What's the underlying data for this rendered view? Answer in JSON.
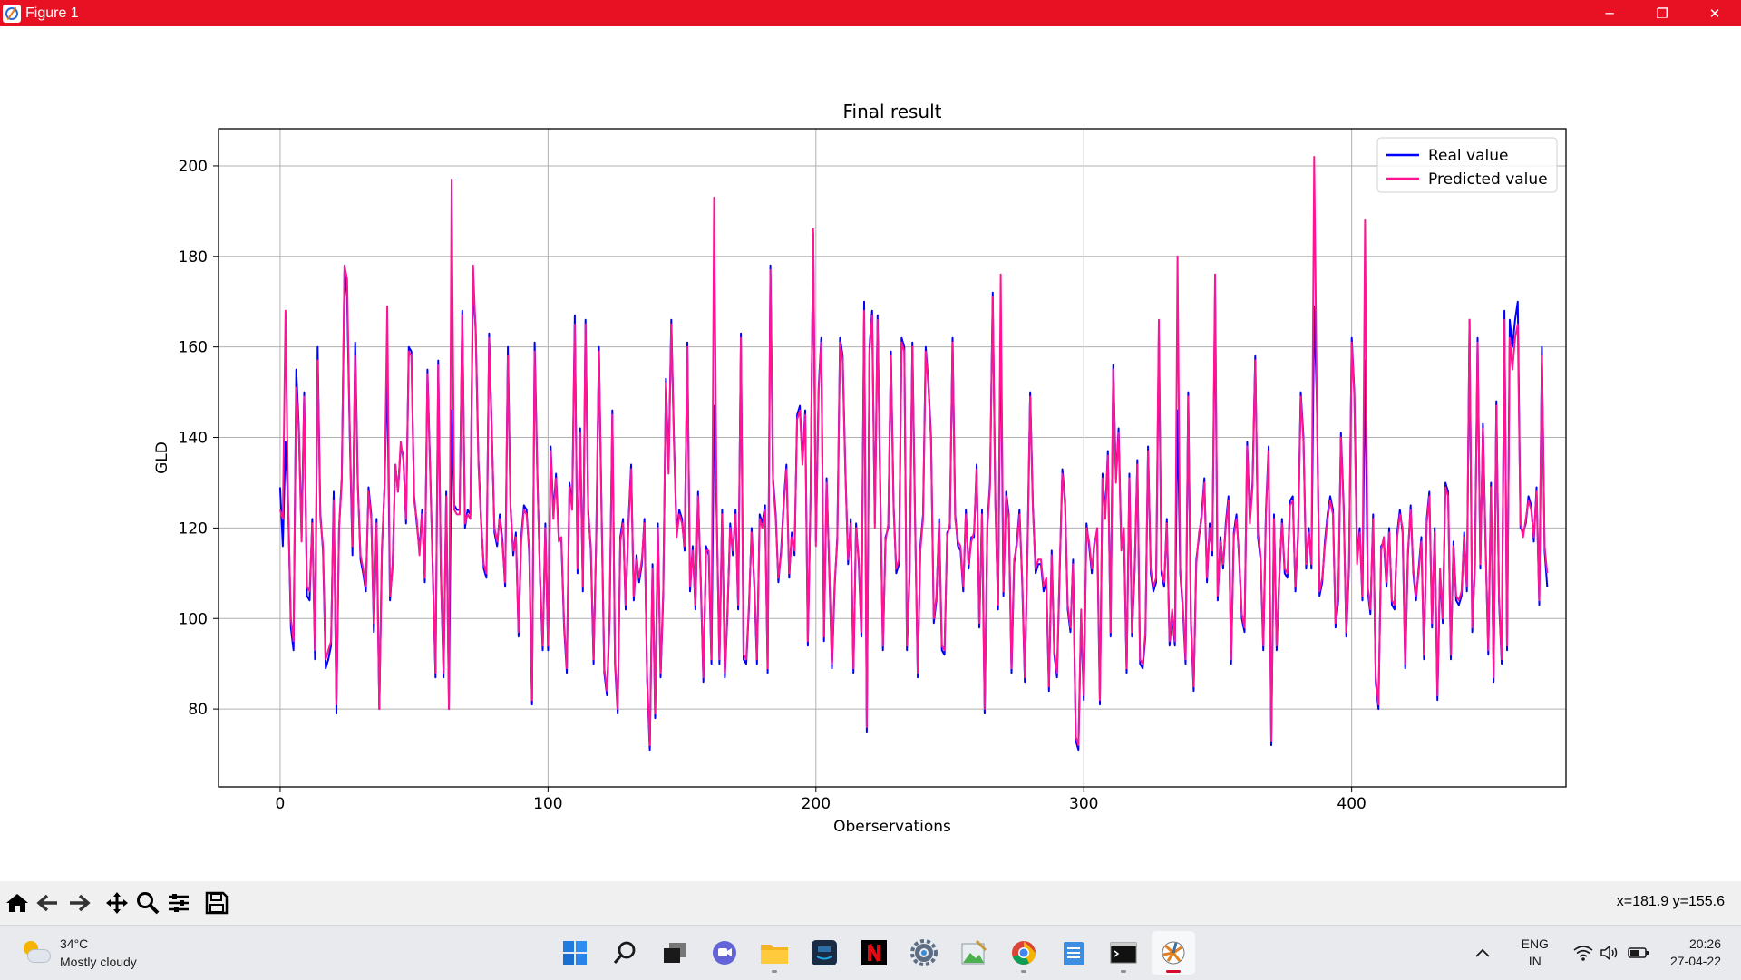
{
  "window": {
    "title": "Figure 1",
    "minimize_label": "─",
    "restore_label": "❐",
    "close_label": "✕",
    "titlebar_color": "#e81123"
  },
  "chart_data": {
    "type": "line",
    "title": "Final result",
    "xlabel": "Oberservations",
    "ylabel": "GLD",
    "xlim": [
      -23,
      480
    ],
    "ylim": [
      62.8,
      208.2
    ],
    "xticks": [
      0,
      100,
      200,
      300,
      400
    ],
    "yticks": [
      80,
      100,
      120,
      140,
      160,
      180,
      200
    ],
    "grid": true,
    "legend_position": "top-right",
    "series": [
      {
        "name": "Real value",
        "color": "#0000ff",
        "values": [
          129,
          116,
          139,
          125,
          98,
          93,
          155,
          142,
          118,
          150,
          105,
          104,
          122,
          91,
          160,
          123,
          115,
          89,
          91,
          94,
          128,
          79,
          120,
          131,
          177,
          171,
          140,
          114,
          161,
          130,
          113,
          110,
          106,
          129,
          123,
          97,
          122,
          80,
          115,
          130,
          155,
          104,
          112,
          134,
          128,
          138,
          136,
          121,
          160,
          159,
          127,
          121,
          115,
          124,
          108,
          155,
          133,
          110,
          87,
          157,
          110,
          87,
          128,
          80,
          146,
          125,
          124,
          124,
          168,
          120,
          124,
          123,
          174,
          164,
          135,
          122,
          111,
          109,
          163,
          142,
          119,
          116,
          123,
          117,
          107,
          160,
          125,
          114,
          119,
          96,
          118,
          125,
          124,
          114,
          81,
          161,
          132,
          109,
          93,
          121,
          93,
          138,
          123,
          132,
          118,
          117,
          98,
          88,
          130,
          125,
          167,
          110,
          142,
          106,
          166,
          124,
          115,
          90,
          119,
          160,
          123,
          88,
          83,
          100,
          146,
          90,
          79,
          118,
          122,
          102,
          121,
          134,
          104,
          114,
          108,
          112,
          122,
          86,
          71,
          112,
          78,
          121,
          87,
          105,
          153,
          133,
          166,
          140,
          119,
          124,
          122,
          115,
          161,
          106,
          116,
          102,
          128,
          108,
          86,
          116,
          114,
          90,
          147,
          122,
          90,
          124,
          87,
          101,
          121,
          114,
          124,
          102,
          163,
          91,
          90,
          102,
          120,
          107,
          90,
          123,
          121,
          125,
          88,
          178,
          131,
          123,
          108,
          115,
          126,
          134,
          109,
          119,
          114,
          145,
          147,
          135,
          146,
          94,
          127,
          185,
          117,
          151,
          162,
          95,
          131,
          110,
          89,
          107,
          118,
          162,
          158,
          133,
          112,
          122,
          88,
          121,
          112,
          96,
          170,
          75,
          160,
          168,
          121,
          167,
          130,
          93,
          118,
          120,
          159,
          125,
          110,
          112,
          162,
          160,
          93,
          110,
          161,
          123,
          87,
          116,
          123,
          160,
          152,
          140,
          99,
          104,
          122,
          93,
          92,
          119,
          120,
          162,
          123,
          116,
          115,
          106,
          124,
          111,
          118,
          118,
          134,
          98,
          124,
          79,
          121,
          130,
          172,
          126,
          102,
          167,
          105,
          128,
          123,
          88,
          112,
          117,
          124,
          108,
          86,
          116,
          150,
          125,
          110,
          112,
          112,
          106,
          108,
          84,
          115,
          92,
          87,
          110,
          133,
          126,
          102,
          97,
          113,
          73,
          71,
          101,
          82,
          121,
          116,
          110,
          117,
          119,
          81,
          132,
          123,
          137,
          96,
          156,
          131,
          142,
          116,
          119,
          88,
          132,
          96,
          111,
          135,
          90,
          89,
          96,
          138,
          110,
          106,
          108,
          163,
          110,
          107,
          122,
          94,
          101,
          94,
          146,
          110,
          102,
          90,
          150,
          99,
          84,
          113,
          118,
          123,
          131,
          108,
          121,
          114,
          172,
          104,
          118,
          111,
          121,
          127,
          90,
          119,
          123,
          113,
          100,
          97,
          139,
          122,
          130,
          158,
          118,
          113,
          93,
          124,
          138,
          72,
          123,
          93,
          109,
          122,
          110,
          109,
          126,
          127,
          106,
          119,
          150,
          140,
          111,
          120,
          111,
          169,
          148,
          105,
          108,
          117,
          123,
          127,
          124,
          98,
          104,
          141,
          125,
          96,
          111,
          162,
          150,
          113,
          120,
          104,
          157,
          106,
          101,
          123,
          86,
          80,
          116,
          117,
          107,
          120,
          103,
          102,
          119,
          124,
          119,
          89,
          114,
          125,
          110,
          104,
          111,
          118,
          91,
          122,
          128,
          98,
          120,
          82,
          110,
          99,
          130,
          128,
          91,
          117,
          104,
          103,
          105,
          119,
          106,
          166,
          97,
          112,
          162,
          111,
          143,
          116,
          92,
          130,
          86,
          148,
          104,
          90,
          168,
          93,
          166,
          160,
          166,
          170,
          120,
          119,
          121,
          127,
          125,
          117,
          129,
          103,
          160,
          115,
          107
        ],
        "width": 2
      },
      {
        "name": "Predicted value",
        "color": "#ff1493",
        "values": [
          124,
          122,
          168,
          125,
          100,
          95,
          151,
          141,
          117,
          149,
          107,
          106,
          121,
          93,
          157,
          122,
          116,
          91,
          93,
          95,
          126,
          81,
          120,
          130,
          178,
          175,
          141,
          116,
          158,
          129,
          114,
          111,
          107,
          128,
          122,
          99,
          121,
          80,
          116,
          129,
          169,
          105,
          111,
          134,
          128,
          139,
          135,
          122,
          159,
          158,
          126,
          122,
          114,
          123,
          109,
          154,
          132,
          111,
          88,
          156,
          111,
          88,
          127,
          80,
          197,
          124,
          123,
          123,
          167,
          121,
          123,
          122,
          178,
          163,
          134,
          121,
          112,
          110,
          162,
          141,
          120,
          117,
          122,
          116,
          108,
          158,
          124,
          115,
          118,
          97,
          117,
          124,
          123,
          115,
          82,
          159,
          131,
          110,
          94,
          120,
          94,
          137,
          122,
          131,
          117,
          118,
          99,
          89,
          129,
          124,
          165,
          111,
          141,
          107,
          165,
          123,
          116,
          91,
          118,
          159,
          122,
          89,
          84,
          101,
          145,
          91,
          80,
          117,
          121,
          103,
          120,
          133,
          105,
          113,
          109,
          113,
          121,
          87,
          72,
          111,
          79,
          120,
          88,
          106,
          152,
          132,
          165,
          139,
          118,
          123,
          121,
          116,
          160,
          107,
          115,
          103,
          127,
          109,
          87,
          115,
          115,
          91,
          193,
          121,
          91,
          123,
          88,
          102,
          120,
          115,
          123,
          103,
          162,
          92,
          91,
          103,
          119,
          108,
          91,
          122,
          120,
          124,
          89,
          177,
          130,
          122,
          109,
          114,
          125,
          133,
          110,
          118,
          115,
          144,
          146,
          134,
          145,
          95,
          126,
          186,
          116,
          150,
          161,
          96,
          130,
          111,
          90,
          108,
          117,
          161,
          157,
          132,
          113,
          121,
          89,
          120,
          113,
          97,
          168,
          76,
          159,
          167,
          120,
          166,
          129,
          94,
          117,
          121,
          158,
          124,
          111,
          113,
          161,
          159,
          94,
          111,
          160,
          122,
          88,
          115,
          122,
          159,
          151,
          139,
          100,
          105,
          121,
          94,
          93,
          118,
          121,
          161,
          122,
          117,
          116,
          107,
          123,
          112,
          117,
          119,
          133,
          99,
          123,
          80,
          120,
          129,
          171,
          125,
          103,
          176,
          106,
          127,
          122,
          89,
          113,
          116,
          123,
          109,
          87,
          115,
          149,
          124,
          111,
          113,
          113,
          107,
          109,
          85,
          114,
          93,
          88,
          111,
          132,
          125,
          103,
          98,
          112,
          74,
          72,
          102,
          83,
          120,
          117,
          111,
          116,
          120,
          82,
          131,
          122,
          136,
          97,
          155,
          130,
          141,
          115,
          120,
          89,
          131,
          97,
          112,
          134,
          91,
          90,
          97,
          137,
          111,
          107,
          109,
          166,
          111,
          108,
          121,
          95,
          102,
          95,
          180,
          111,
          103,
          91,
          149,
          100,
          85,
          112,
          119,
          122,
          130,
          109,
          120,
          115,
          176,
          105,
          117,
          112,
          120,
          126,
          91,
          118,
          122,
          114,
          101,
          98,
          138,
          121,
          129,
          157,
          119,
          114,
          94,
          123,
          137,
          73,
          122,
          94,
          110,
          121,
          111,
          110,
          125,
          126,
          107,
          118,
          149,
          139,
          112,
          119,
          112,
          202,
          147,
          106,
          109,
          116,
          122,
          126,
          123,
          99,
          105,
          140,
          124,
          97,
          112,
          161,
          149,
          112,
          119,
          105,
          188,
          107,
          102,
          122,
          87,
          81,
          115,
          118,
          108,
          119,
          104,
          103,
          118,
          123,
          120,
          90,
          115,
          124,
          111,
          105,
          110,
          117,
          92,
          121,
          127,
          99,
          119,
          83,
          111,
          100,
          129,
          127,
          92,
          116,
          105,
          104,
          106,
          118,
          107,
          166,
          98,
          111,
          161,
          112,
          142,
          115,
          93,
          129,
          87,
          147,
          105,
          91,
          166,
          94,
          162,
          155,
          162,
          165,
          121,
          118,
          122,
          126,
          124,
          118,
          128,
          104,
          158,
          116,
          110
        ],
        "width": 2
      }
    ]
  },
  "toolbar": {
    "buttons": [
      "home-icon",
      "back-icon",
      "forward-icon",
      "pan-icon",
      "zoom-icon",
      "configure-subplots-icon",
      "save-icon"
    ],
    "coordinates": "x=181.9 y=155.6"
  },
  "taskbar": {
    "weather_temp": "34°C",
    "weather_desc": "Mostly cloudy",
    "apps": [
      "start-icon",
      "search-icon",
      "task-view-icon",
      "teams-chat-icon",
      "file-explorer-icon",
      "prime-video-icon",
      "netflix-icon",
      "settings-icon",
      "photos-icon",
      "chrome-icon",
      "notepad-icon",
      "terminal-icon",
      "python-figure-icon"
    ],
    "lang_top": "ENG",
    "lang_bottom": "IN",
    "time": "20:26",
    "date": "27-04-22"
  }
}
